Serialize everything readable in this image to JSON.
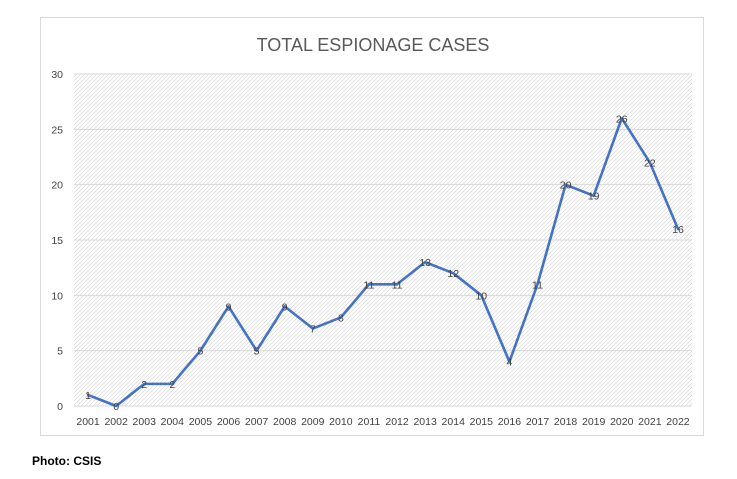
{
  "chart_data": {
    "type": "line",
    "title": "TOTAL ESPIONAGE CASES",
    "xlabel": "",
    "ylabel": "",
    "categories": [
      "2001",
      "2002",
      "2003",
      "2004",
      "2005",
      "2006",
      "2007",
      "2008",
      "2009",
      "2010",
      "2011",
      "2012",
      "2013",
      "2014",
      "2015",
      "2016",
      "2017",
      "2018",
      "2019",
      "2020",
      "2021",
      "2022"
    ],
    "series": [
      {
        "values": [
          1,
          0,
          2,
          2,
          5,
          9,
          5,
          9,
          7,
          8,
          11,
          11,
          13,
          12,
          10,
          4,
          11,
          20,
          19,
          26,
          22,
          16
        ]
      }
    ],
    "ylim": [
      0,
      30
    ],
    "yticks": [
      0,
      5,
      10,
      15,
      20,
      25,
      30
    ],
    "data_labels": true,
    "grid": "hatched plot background with horizontal gridlines",
    "legend": "none",
    "colors": {
      "line": "#4472c4",
      "frame": "#d9d9d9",
      "title": "#595959",
      "text": "#404040"
    }
  },
  "caption": "Photo: CSIS"
}
